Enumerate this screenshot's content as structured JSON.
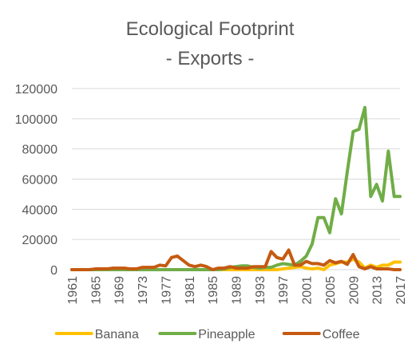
{
  "chart_data": {
    "type": "line",
    "title_line1": "Ecological Footprint",
    "title_line2": "- Exports -",
    "xlabel": "",
    "ylabel": "",
    "ylim": [
      0,
      120000
    ],
    "y_ticks": [
      0,
      20000,
      40000,
      60000,
      80000,
      100000,
      120000
    ],
    "y_tick_labels": [
      "0",
      "20000",
      "40000",
      "60000",
      "80000",
      "100000",
      "120000"
    ],
    "x": [
      1961,
      1962,
      1963,
      1964,
      1965,
      1966,
      1967,
      1968,
      1969,
      1970,
      1971,
      1972,
      1973,
      1974,
      1975,
      1976,
      1977,
      1978,
      1979,
      1980,
      1981,
      1982,
      1983,
      1984,
      1985,
      1986,
      1987,
      1988,
      1989,
      1990,
      1991,
      1992,
      1993,
      1994,
      1995,
      1996,
      1997,
      1998,
      1999,
      2000,
      2001,
      2002,
      2003,
      2004,
      2005,
      2006,
      2007,
      2008,
      2009,
      2010,
      2011,
      2012,
      2013,
      2014,
      2015,
      2016,
      2017
    ],
    "x_tick_labels": [
      "1961",
      "1965",
      "1969",
      "1973",
      "1977",
      "1981",
      "1985",
      "1989",
      "1993",
      "1997",
      "2001",
      "2005",
      "2009",
      "2013",
      "2017"
    ],
    "grid": "horizontal",
    "legend_position": "bottom",
    "series": [
      {
        "name": "Banana",
        "color": "#FFC000",
        "values": [
          0,
          0,
          0,
          0,
          0,
          0,
          0,
          0,
          0,
          0,
          0,
          0,
          0,
          0,
          0,
          0,
          0,
          0,
          0,
          0,
          0,
          0,
          0,
          0,
          0,
          0,
          0,
          0,
          0,
          0,
          0,
          0,
          0,
          0,
          0,
          0,
          500,
          1000,
          1500,
          2000,
          1000,
          500,
          1000,
          0,
          3000,
          4000,
          5000,
          5000,
          7000,
          5000,
          1000,
          3000,
          1500,
          3000,
          3000,
          5000,
          5000
        ]
      },
      {
        "name": "Pineapple",
        "color": "#70AD47",
        "values": [
          0,
          0,
          0,
          0,
          0,
          0,
          0,
          0,
          0,
          0,
          0,
          0,
          0,
          0,
          0,
          0,
          0,
          0,
          0,
          0,
          0,
          0,
          0,
          0,
          0,
          0,
          500,
          1500,
          2000,
          2500,
          2500,
          1500,
          1000,
          1500,
          1500,
          3000,
          4000,
          3500,
          3000,
          5500,
          9000,
          17000,
          34500,
          34500,
          24500,
          47000,
          37000,
          65000,
          91500,
          93000,
          107500,
          48500,
          56500,
          45500,
          78500,
          48500,
          48500
        ]
      },
      {
        "name": "Coffee",
        "color": "#C55A11",
        "values": [
          0,
          0,
          0,
          0,
          500,
          500,
          500,
          1000,
          1000,
          1000,
          500,
          500,
          1500,
          1500,
          1500,
          3000,
          2500,
          8000,
          9000,
          6000,
          3000,
          2000,
          3000,
          2000,
          0,
          1000,
          1000,
          2000,
          1000,
          1000,
          1000,
          2000,
          2000,
          2000,
          12000,
          8000,
          7000,
          13000,
          3000,
          3000,
          5500,
          4000,
          4000,
          3000,
          6000,
          4500,
          5500,
          3500,
          10000,
          2000,
          500,
          2000,
          500,
          500,
          500,
          0,
          0
        ]
      }
    ]
  }
}
